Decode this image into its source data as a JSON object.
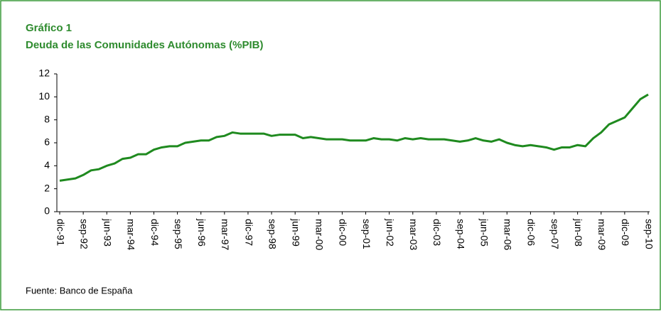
{
  "chart_data": {
    "type": "line",
    "title": "Gráfico 1",
    "subtitle": "Deuda de las Comunidades Autónomas (%PIB)",
    "source": "Fuente: Banco de España",
    "categories": [
      "dic-91",
      null,
      null,
      "sep-92",
      null,
      null,
      "jun-93",
      null,
      null,
      "mar-94",
      null,
      null,
      "dic-94",
      null,
      null,
      "sep-95",
      null,
      null,
      "jun-96",
      null,
      null,
      "mar-97",
      null,
      null,
      "dic-97",
      null,
      null,
      "sep-98",
      null,
      null,
      "jun-99",
      null,
      null,
      "mar-00",
      null,
      null,
      "dic-00",
      null,
      null,
      "sep-01",
      null,
      null,
      "jun-02",
      null,
      null,
      "mar-03",
      null,
      null,
      "dic-03",
      null,
      null,
      "sep-04",
      null,
      null,
      "jun-05",
      null,
      null,
      "mar-06",
      null,
      null,
      "dic-06",
      null,
      null,
      "sep-07",
      null,
      null,
      "jun-08",
      null,
      null,
      "mar-09",
      null,
      null,
      "dic-09",
      null,
      null,
      "sep-10"
    ],
    "values": [
      2.7,
      2.8,
      2.9,
      3.2,
      3.6,
      3.7,
      4.0,
      4.2,
      4.6,
      4.7,
      5.0,
      5.0,
      5.4,
      5.6,
      5.7,
      5.7,
      6.0,
      6.1,
      6.2,
      6.2,
      6.5,
      6.6,
      6.9,
      6.8,
      6.8,
      6.8,
      6.8,
      6.6,
      6.7,
      6.7,
      6.7,
      6.4,
      6.5,
      6.4,
      6.3,
      6.3,
      6.3,
      6.2,
      6.2,
      6.2,
      6.4,
      6.3,
      6.3,
      6.2,
      6.4,
      6.3,
      6.4,
      6.3,
      6.3,
      6.3,
      6.2,
      6.1,
      6.2,
      6.4,
      6.2,
      6.1,
      6.3,
      6.0,
      5.8,
      5.7,
      5.8,
      5.7,
      5.6,
      5.4,
      5.6,
      5.6,
      5.8,
      5.7,
      6.4,
      6.9,
      7.6,
      7.9,
      8.2,
      9.0,
      9.8,
      10.2
    ],
    "color": "#1f8a1f",
    "ylim": [
      0,
      12
    ],
    "yticks": [
      0,
      2,
      4,
      6,
      8,
      10,
      12
    ]
  }
}
